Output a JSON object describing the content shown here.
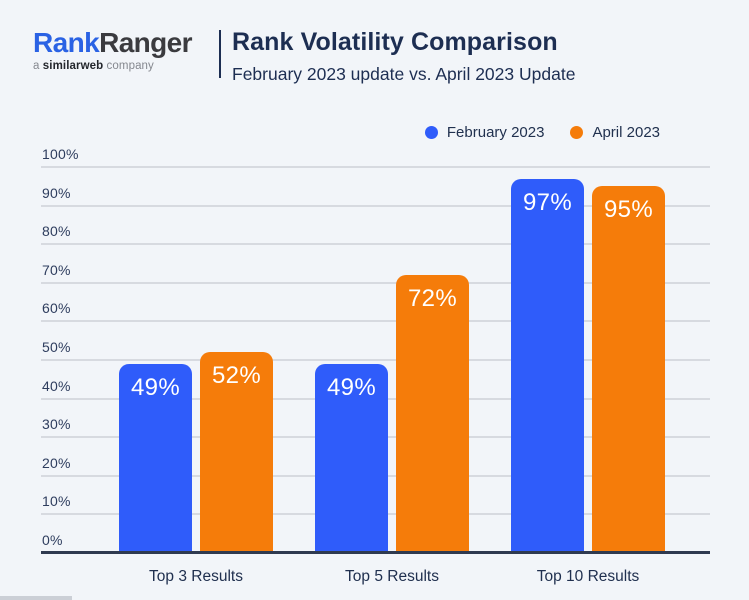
{
  "header": {
    "logo": {
      "brand_blue": "Rank",
      "brand_dark": "Ranger",
      "tagline_prefix": "a ",
      "tagline_brand": "similarweb",
      "tagline_suffix": " company"
    },
    "title": "Rank Volatility Comparison",
    "subtitle": "February 2023 update vs. April 2023 Update"
  },
  "legend": {
    "items": [
      {
        "label": "February 2023",
        "color": "#2F5CFA"
      },
      {
        "label": "April 2023",
        "color": "#F57C0A"
      }
    ]
  },
  "chart_data": {
    "type": "bar",
    "title": "Rank Volatility Comparison",
    "subtitle": "February 2023 update vs. April 2023 Update",
    "categories": [
      "Top 3 Results",
      "Top 5 Results",
      "Top 10 Results"
    ],
    "series": [
      {
        "name": "February 2023",
        "color": "#2F5CFA",
        "values": [
          49,
          49,
          97
        ]
      },
      {
        "name": "April 2023",
        "color": "#F57C0A",
        "values": [
          52,
          72,
          95
        ]
      }
    ],
    "value_suffix": "%",
    "ylim": [
      0,
      100
    ],
    "yticks": [
      "0%",
      "10%",
      "20%",
      "30%",
      "40%",
      "50%",
      "60%",
      "70%",
      "80%",
      "90%",
      "100%"
    ],
    "grid": true,
    "legend_position": "top-right",
    "bar_label_color": "#FFFFFF",
    "xlabel": "",
    "ylabel": ""
  },
  "colors": {
    "background": "#F2F5F9",
    "blue": "#2F5CFA",
    "orange": "#F57C0A",
    "navy_text": "#1D2E52",
    "logo_blue": "#2A62E4",
    "logo_dark": "#3B3B3F"
  }
}
